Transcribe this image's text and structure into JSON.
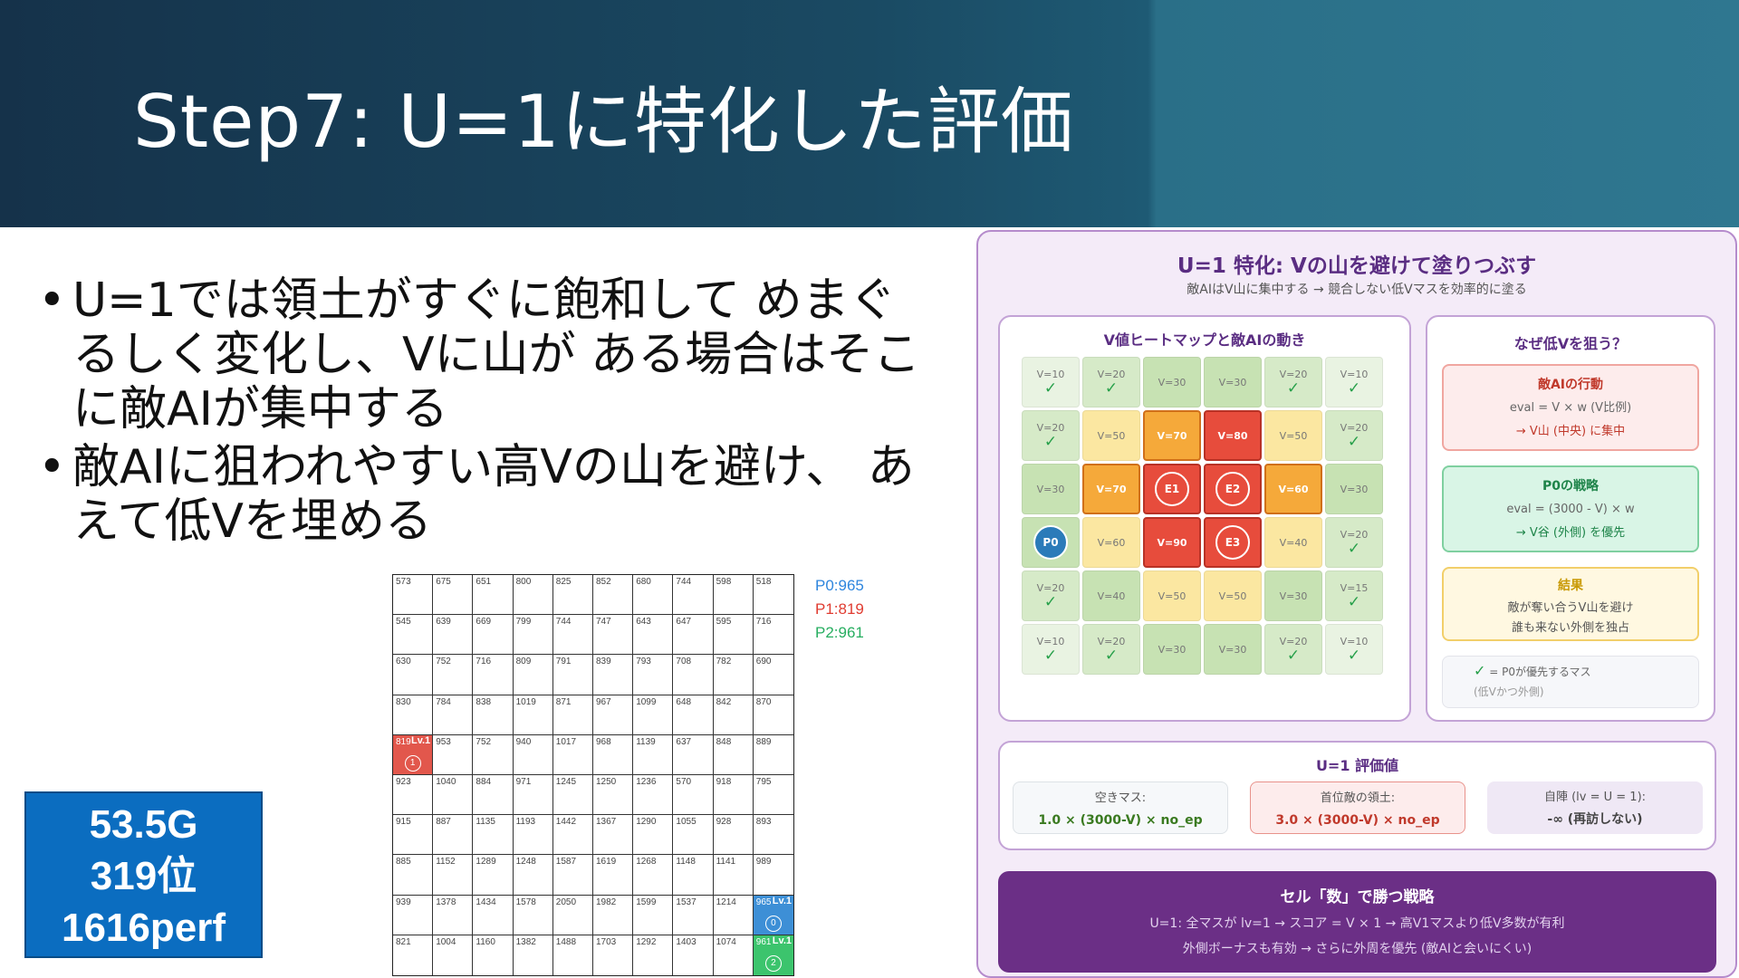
{
  "slide": {
    "title": "Step7: U=1に特化した評価",
    "bullets": [
      "U=1では領土がすぐに飽和して めまぐるしく変化し、Vに山が ある場合はそこに敵AIが集中する",
      "敵AIに狙われやすい高Vの山を避け、 あえて低Vを埋める"
    ]
  },
  "board": {
    "rows": [
      [
        573,
        675,
        651,
        800,
        825,
        852,
        680,
        744,
        598,
        518
      ],
      [
        545,
        639,
        669,
        799,
        744,
        747,
        643,
        647,
        595,
        716
      ],
      [
        630,
        752,
        716,
        809,
        791,
        839,
        793,
        708,
        782,
        690
      ],
      [
        830,
        784,
        838,
        1019,
        871,
        967,
        1099,
        648,
        842,
        870
      ],
      [
        819,
        953,
        752,
        940,
        1017,
        968,
        1139,
        637,
        848,
        889
      ],
      [
        923,
        1040,
        884,
        971,
        1245,
        1250,
        1236,
        570,
        918,
        795
      ],
      [
        915,
        887,
        1135,
        1193,
        1442,
        1367,
        1290,
        1055,
        928,
        893
      ],
      [
        885,
        1152,
        1289,
        1248,
        1587,
        1619,
        1268,
        1148,
        1141,
        989
      ],
      [
        939,
        1378,
        1434,
        1578,
        2050,
        1982,
        1599,
        1537,
        1214,
        965
      ],
      [
        821,
        1004,
        1160,
        1382,
        1488,
        1703,
        1292,
        1403,
        1074,
        961
      ]
    ],
    "players": [
      {
        "id": "0",
        "row": 8,
        "col": 9,
        "level": "Lv.1",
        "color": "#3d8fd6"
      },
      {
        "id": "1",
        "row": 4,
        "col": 0,
        "level": "Lv.1",
        "color": "#e2574c"
      },
      {
        "id": "2",
        "row": 9,
        "col": 9,
        "level": "Lv.1",
        "color": "#3cc46d"
      }
    ],
    "scores": [
      {
        "label": "P0:965",
        "color": "#2e86de"
      },
      {
        "label": "P1:819",
        "color": "#e03c31"
      },
      {
        "label": "P2:961",
        "color": "#27ae60"
      }
    ]
  },
  "stats": {
    "line1": "53.5G",
    "line2": "319位",
    "line3": "1616perf"
  },
  "panel": {
    "title": "U=1 特化: Vの山を避けて塗りつぶす",
    "subtitle": "敵AIはV山に集中する → 競合しない低Vマスを効率的に塗る",
    "heatmap": {
      "title": "V値ヒートマップと敵AIの動き",
      "cells": [
        [
          {
            "v": "V=10",
            "c": 1
          },
          {
            "v": "V=20",
            "c": 1
          },
          {
            "v": "V=30"
          },
          {
            "v": "V=30"
          },
          {
            "v": "V=20",
            "c": 1
          },
          {
            "v": "V=10",
            "c": 1
          }
        ],
        [
          {
            "v": "V=20",
            "c": 1
          },
          {
            "v": "V=50"
          },
          {
            "v": "V=70"
          },
          {
            "v": "V=80"
          },
          {
            "v": "V=50"
          },
          {
            "v": "V=20",
            "c": 1
          }
        ],
        [
          {
            "v": "V=30"
          },
          {
            "v": "V=70"
          },
          {
            "t": "E1"
          },
          {
            "t": "E2"
          },
          {
            "v": "V=60",
            "o": 1
          },
          {
            "v": "V=30"
          }
        ],
        [
          {
            "t": "P0"
          },
          {
            "v": "V=60"
          },
          {
            "v": "V=90"
          },
          {
            "t": "E3"
          },
          {
            "v": "V=40",
            "y": 1
          },
          {
            "v": "V=20",
            "c": 1
          }
        ],
        [
          {
            "v": "V=20",
            "c": 1
          },
          {
            "v": "V=40"
          },
          {
            "v": "V=50"
          },
          {
            "v": "V=50"
          },
          {
            "v": "V=30"
          },
          {
            "v": "V=15",
            "c": 1
          }
        ],
        [
          {
            "v": "V=10",
            "c": 1
          },
          {
            "v": "V=20",
            "c": 1
          },
          {
            "v": "V=30"
          },
          {
            "v": "V=30"
          },
          {
            "v": "V=20",
            "c": 1
          },
          {
            "v": "V=10",
            "c": 1
          }
        ]
      ],
      "check": "✓"
    },
    "why": {
      "title": "なぜ低Vを狙う？",
      "enemy": {
        "title": "敵AIの行動",
        "l1": "eval = V × w (V比例)",
        "l2": "→ V山 (中央) に集中"
      },
      "p0": {
        "title": "P0の戦略",
        "l1": "eval = (3000 - V) × w",
        "l2": "→ V谷 (外側) を優先"
      },
      "result": {
        "title": "結果",
        "l1": "敵が奪い合うV山を避け",
        "l2": "誰も来ない外側を独占"
      },
      "legend": {
        "mark": "✓",
        "l1": "= P0が優先するマス",
        "l2": "(低Vかつ外側)"
      }
    },
    "eval": {
      "title": "U=1 評価値",
      "items": [
        {
          "label": "空きマス:",
          "formula": "1.0 × (3000-V) × no_ep"
        },
        {
          "label": "首位敵の領土:",
          "formula": "3.0 × (3000-V) × no_ep"
        },
        {
          "label": "自陣 (lv = U = 1):",
          "formula": "-∞ (再訪しない)"
        }
      ]
    },
    "strategy": {
      "title": "セル「数」で勝つ戦略",
      "l1": "U=1: 全マスが lv=1 → スコア = V × 1 → 高V1マスより低V多数が有利",
      "l2": "外側ボーナスも有効 → さらに外周を優先 (敵AIと会いにくい)"
    }
  },
  "colors": {
    "accent": "#5a2d82",
    "enemy": "#e74c3c",
    "p0": "#2b7bb9"
  }
}
